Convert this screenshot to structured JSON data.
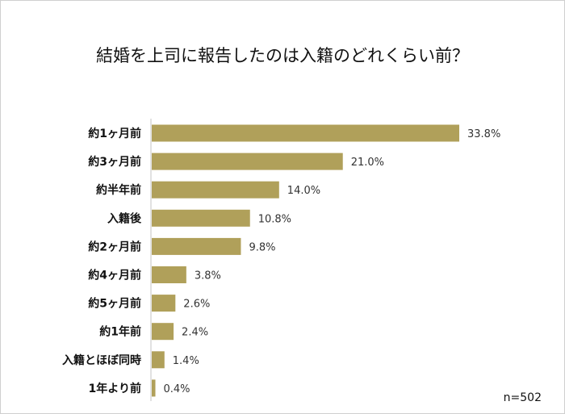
{
  "chart_data": {
    "type": "bar",
    "orientation": "horizontal",
    "title": "結婚を上司に報告したのは入籍のどれくらい前？",
    "categories": [
      "約1ヶ月前",
      "約3ヶ月前",
      "約半年前",
      "入籍後",
      "約2ヶ月前",
      "約4ヶ月前",
      "約5ヶ月前",
      "約1年前",
      "入籍とほぼ同時",
      "1年より前"
    ],
    "values": [
      33.8,
      21.0,
      14.0,
      10.8,
      9.8,
      3.8,
      2.6,
      2.4,
      1.4,
      0.4
    ],
    "value_labels": [
      "33.8%",
      "21.0%",
      "14.0%",
      "10.8%",
      "9.8%",
      "3.8%",
      "2.6%",
      "2.4%",
      "1.4%",
      "0.4%"
    ],
    "unit": "%",
    "xlim": [
      0,
      40
    ],
    "grid": false,
    "legend": "none",
    "bar_color": "#b0a05a",
    "note": "n=502"
  }
}
